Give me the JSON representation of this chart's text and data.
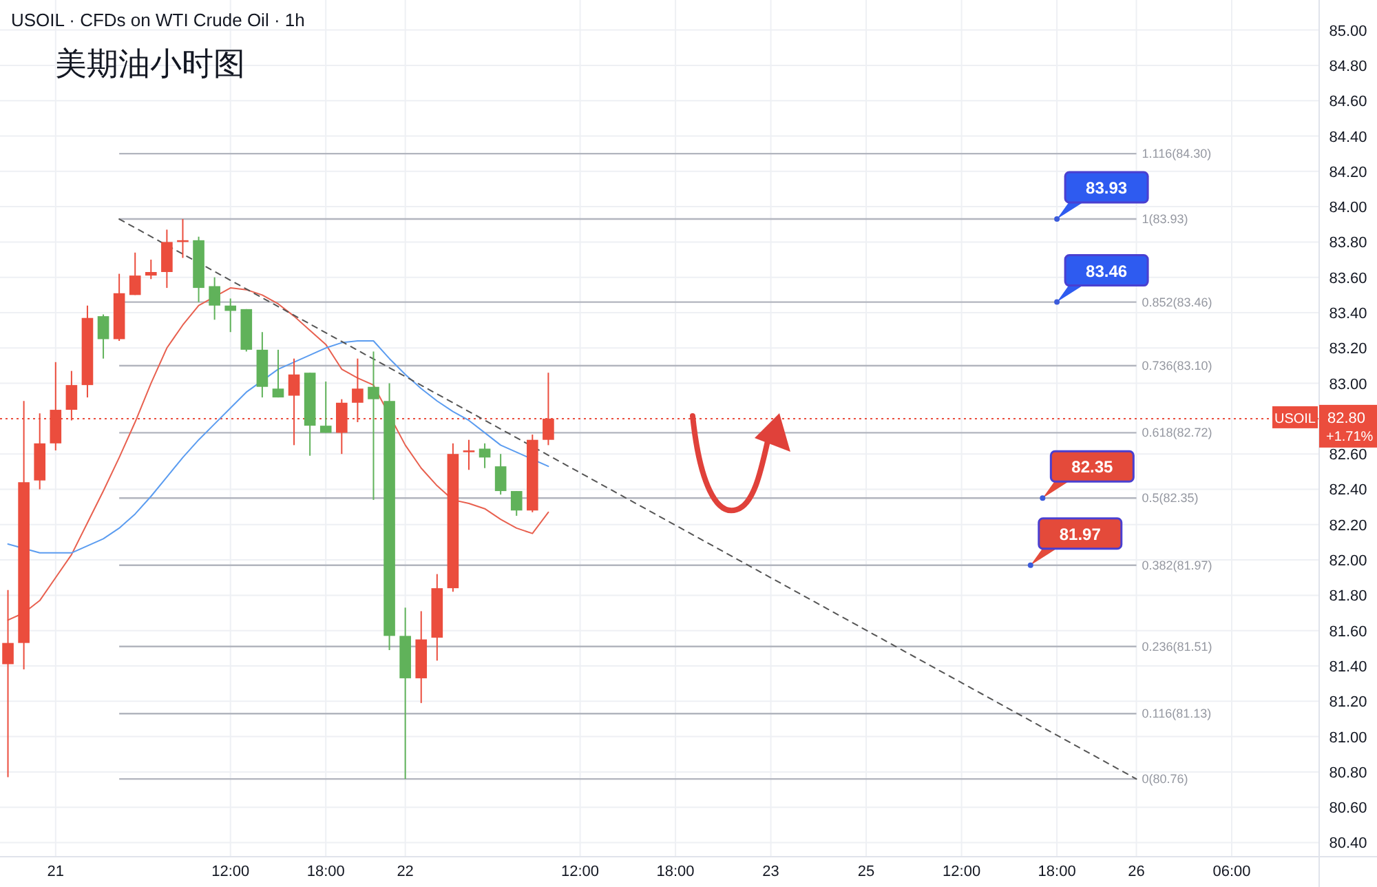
{
  "chart_data": {
    "type": "candlestick",
    "title": "美期油小时图",
    "subtitle": "USOIL · CFDs on WTI Crude Oil · 1h",
    "categories": [
      null,
      null,
      null,
      "21",
      null,
      null,
      null,
      null,
      null,
      null,
      null,
      null,
      null,
      null,
      "12:00",
      null,
      null,
      null,
      null,
      null,
      "18:00",
      null,
      null,
      null,
      null,
      "22",
      null,
      null,
      null,
      null,
      null,
      null,
      null,
      null,
      null,
      null,
      "12:00",
      null,
      null,
      null,
      null,
      null,
      "18:00",
      null,
      null,
      null,
      null,
      null,
      "23",
      null,
      null,
      null,
      null,
      null,
      "25",
      null,
      null,
      null,
      null,
      null,
      "12:00",
      null,
      null,
      null,
      null,
      null,
      "18:00",
      null,
      null,
      null,
      null,
      "26",
      null,
      null,
      null,
      null,
      null,
      "06:00",
      null,
      null,
      null,
      null,
      null
    ],
    "ohlc": [
      [
        81.41,
        81.83,
        80.77,
        81.53
      ],
      [
        81.53,
        82.9,
        81.38,
        82.44
      ],
      [
        82.45,
        82.83,
        82.4,
        82.66
      ],
      [
        82.66,
        83.12,
        82.62,
        82.85
      ],
      [
        82.85,
        83.07,
        82.79,
        82.99
      ],
      [
        82.99,
        83.44,
        82.92,
        83.37
      ],
      [
        83.38,
        83.39,
        83.14,
        83.25
      ],
      [
        83.25,
        83.62,
        83.24,
        83.51
      ],
      [
        83.5,
        83.74,
        83.5,
        83.61
      ],
      [
        83.61,
        83.7,
        83.59,
        83.63
      ],
      [
        83.63,
        83.87,
        83.54,
        83.8
      ],
      [
        83.8,
        83.93,
        83.71,
        83.81
      ],
      [
        83.81,
        83.83,
        83.46,
        83.54
      ],
      [
        83.55,
        83.6,
        83.36,
        83.44
      ],
      [
        83.44,
        83.48,
        83.29,
        83.41
      ],
      [
        83.42,
        83.42,
        83.18,
        83.19
      ],
      [
        83.19,
        83.29,
        82.92,
        82.98
      ],
      [
        82.97,
        83.19,
        82.92,
        82.92
      ],
      [
        82.93,
        83.14,
        82.65,
        83.05
      ],
      [
        83.06,
        83.06,
        82.59,
        82.76
      ],
      [
        82.76,
        83.01,
        82.72,
        82.72
      ],
      [
        82.72,
        82.91,
        82.6,
        82.89
      ],
      [
        82.89,
        83.14,
        82.78,
        82.97
      ],
      [
        82.98,
        83.18,
        82.34,
        82.91
      ],
      [
        82.9,
        83.0,
        81.49,
        81.57
      ],
      [
        81.57,
        81.73,
        80.76,
        81.33
      ],
      [
        81.33,
        81.71,
        81.19,
        81.55
      ],
      [
        81.56,
        81.92,
        81.43,
        81.84
      ],
      [
        81.84,
        82.66,
        81.82,
        82.6
      ],
      [
        82.61,
        82.68,
        82.51,
        82.62
      ],
      [
        82.63,
        82.66,
        82.52,
        82.58
      ],
      [
        82.53,
        82.6,
        82.37,
        82.39
      ],
      [
        82.39,
        82.39,
        82.25,
        82.28
      ],
      [
        82.28,
        82.71,
        82.27,
        82.68
      ],
      [
        82.68,
        83.06,
        82.65,
        82.8
      ],
      null,
      null,
      null,
      null,
      null,
      null,
      null,
      null,
      null,
      null,
      null,
      null,
      null,
      null,
      null,
      null,
      null,
      null,
      null,
      null,
      null,
      null,
      null,
      null,
      null,
      null,
      null,
      null,
      null,
      null,
      null,
      null,
      null,
      null,
      null,
      null,
      null,
      null,
      null,
      null,
      null,
      null,
      null,
      null,
      null,
      null,
      null,
      null
    ],
    "colors": [
      "#eb4d3d",
      "#eb4d3d",
      "#eb4d3d",
      "#eb4d3d",
      "#eb4d3d",
      "#eb4d3d",
      "#60b25a",
      "#eb4d3d",
      "#eb4d3d",
      "#eb4d3d",
      "#eb4d3d",
      "#eb4d3d",
      "#60b25a",
      "#60b25a",
      "#60b25a",
      "#60b25a",
      "#60b25a",
      "#60b25a",
      "#eb4d3d",
      "#60b25a",
      "#60b25a",
      "#eb4d3d",
      "#eb4d3d",
      "#60b25a",
      "#60b25a",
      "#60b25a",
      "#eb4d3d",
      "#eb4d3d",
      "#eb4d3d",
      "#eb4d3d",
      "#60b25a",
      "#60b25a",
      "#60b25a",
      "#eb4d3d",
      "#eb4d3d",
      null,
      null,
      null,
      null,
      null,
      null,
      null,
      null,
      null,
      null,
      null,
      null,
      null,
      null,
      null,
      null,
      null,
      null,
      null,
      null,
      null,
      null,
      null,
      null,
      null,
      null,
      null,
      null,
      null,
      null,
      null,
      null,
      null,
      null,
      null,
      null,
      null,
      null,
      null,
      null,
      null,
      null,
      null,
      null,
      null,
      null,
      null,
      null
    ],
    "series": [
      {
        "type": "line",
        "color": "#e8604f",
        "values": [
          81.66,
          81.7,
          81.77,
          81.9,
          82.03,
          82.21,
          82.39,
          82.58,
          82.78,
          83.0,
          83.2,
          83.33,
          83.44,
          null,
          83.54,
          83.53,
          83.5,
          83.45,
          83.38,
          83.3,
          83.22,
          83.08,
          83.03,
          82.99,
          null,
          82.65,
          82.52,
          82.42,
          82.34,
          82.32,
          82.29,
          82.23,
          82.18,
          82.15,
          82.27,
          null,
          null,
          null,
          null,
          null,
          null,
          null,
          null,
          null,
          null,
          null,
          null,
          null,
          null,
          null,
          null,
          null,
          null,
          null,
          null,
          null,
          null,
          null,
          null,
          null,
          null,
          null,
          null,
          null,
          null,
          null,
          null,
          null,
          null,
          null,
          null,
          null,
          null,
          null,
          null,
          null,
          null,
          null,
          null,
          null,
          null,
          null,
          null
        ]
      },
      {
        "type": "line",
        "color": "#5b9cf0",
        "values": [
          82.09,
          null,
          82.04,
          82.04,
          82.04,
          82.08,
          82.12,
          82.18,
          82.26,
          82.36,
          82.47,
          82.58,
          82.68,
          82.77,
          82.86,
          82.95,
          null,
          83.08,
          83.12,
          83.16,
          83.2,
          83.23,
          83.24,
          83.24,
          83.14,
          83.05,
          82.97,
          82.9,
          82.84,
          82.79,
          82.72,
          82.65,
          82.61,
          null,
          82.53,
          null,
          null,
          null,
          null,
          null,
          null,
          null,
          null,
          null,
          null,
          null,
          null,
          null,
          null,
          null,
          null,
          null,
          null,
          null,
          null,
          null,
          null,
          null,
          null,
          null,
          null,
          null,
          null,
          null,
          null,
          null,
          null,
          null,
          null,
          null,
          null,
          null,
          null,
          null,
          null,
          null,
          null,
          null,
          null,
          null,
          null,
          null,
          null
        ]
      },
      {
        "type": "line",
        "color": "#555555",
        "line_style": "dashed",
        "values": [
          null,
          null,
          null,
          null,
          null,
          null,
          null,
          83.93,
          null,
          null,
          null,
          null,
          null,
          null,
          null,
          null,
          null,
          null,
          null,
          null,
          null,
          null,
          null,
          null,
          null,
          null,
          null,
          null,
          null,
          null,
          null,
          null,
          null,
          null,
          null,
          null,
          null,
          null,
          null,
          null,
          null,
          null,
          null,
          null,
          null,
          null,
          null,
          null,
          null,
          null,
          null,
          null,
          null,
          null,
          null,
          null,
          null,
          null,
          null,
          null,
          null,
          null,
          null,
          null,
          null,
          null,
          null,
          null,
          null,
          null,
          null,
          80.76,
          null,
          null,
          null,
          null,
          null,
          null,
          null,
          null,
          null,
          null,
          null
        ]
      }
    ],
    "ref_lines": [
      {
        "axis": "y",
        "value": 84.3,
        "label": "1.116(84.30)",
        "color": "#b2b5be"
      },
      {
        "axis": "y",
        "value": 83.93,
        "label": "1(83.93)",
        "color": "#b2b5be"
      },
      {
        "axis": "y",
        "value": 83.46,
        "label": "0.852(83.46)",
        "color": "#b2b5be"
      },
      {
        "axis": "y",
        "value": 83.1,
        "label": "0.736(83.10)",
        "color": "#b2b5be"
      },
      {
        "axis": "y",
        "value": 82.72,
        "label": "0.618(82.72)",
        "color": "#b2b5be"
      },
      {
        "axis": "y",
        "value": 82.35,
        "label": "0.5(82.35)",
        "color": "#b2b5be"
      },
      {
        "axis": "y",
        "value": 81.97,
        "label": "0.382(81.97)",
        "color": "#b2b5be"
      },
      {
        "axis": "y",
        "value": 81.51,
        "label": "0.236(81.51)",
        "color": "#b2b5be"
      },
      {
        "axis": "y",
        "value": 81.13,
        "label": "0.116(81.13)",
        "color": "#b2b5be"
      },
      {
        "axis": "y",
        "value": 80.76,
        "label": "0(80.76)",
        "color": "#b2b5be"
      },
      {
        "axis": "y",
        "value": 82.8,
        "label": "82.80",
        "color": "#eb4d3d",
        "line_style": "dotted"
      }
    ],
    "annotations": [
      {
        "text": "83.93",
        "y": 83.93
      },
      {
        "text": "83.46",
        "y": 83.46
      },
      {
        "text": "82.35",
        "y": 82.35
      },
      {
        "text": "81.97",
        "y": 81.97
      },
      "USOIL",
      "+1.71%"
    ],
    "ylim": [
      80.32,
      85.17
    ],
    "yticks": [
      {
        "value": 80.4,
        "label": "80.40"
      },
      {
        "value": 80.6,
        "label": "80.60"
      },
      {
        "value": 80.8,
        "label": "80.80"
      },
      {
        "value": 81.0,
        "label": "81.00"
      },
      {
        "value": 81.2,
        "label": "81.20"
      },
      {
        "value": 81.4,
        "label": "81.40"
      },
      {
        "value": 81.6,
        "label": "81.60"
      },
      {
        "value": 81.8,
        "label": "81.80"
      },
      {
        "value": 82.0,
        "label": "82.00"
      },
      {
        "value": 82.2,
        "label": "82.20"
      },
      {
        "value": 82.4,
        "label": "82.40"
      },
      {
        "value": 82.6,
        "label": "82.60"
      },
      {
        "value": 83.0,
        "label": "83.00"
      },
      {
        "value": 83.2,
        "label": "83.20"
      },
      {
        "value": 83.4,
        "label": "83.40"
      },
      {
        "value": 83.6,
        "label": "83.60"
      },
      {
        "value": 83.8,
        "label": "83.80"
      },
      {
        "value": 84.0,
        "label": "84.00"
      },
      {
        "value": 84.2,
        "label": "84.20"
      },
      {
        "value": 84.4,
        "label": "84.40"
      },
      {
        "value": 84.6,
        "label": "84.60"
      },
      {
        "value": 84.8,
        "label": "84.80"
      },
      {
        "value": 85.0,
        "label": "85.00"
      }
    ],
    "grid": true
  }
}
